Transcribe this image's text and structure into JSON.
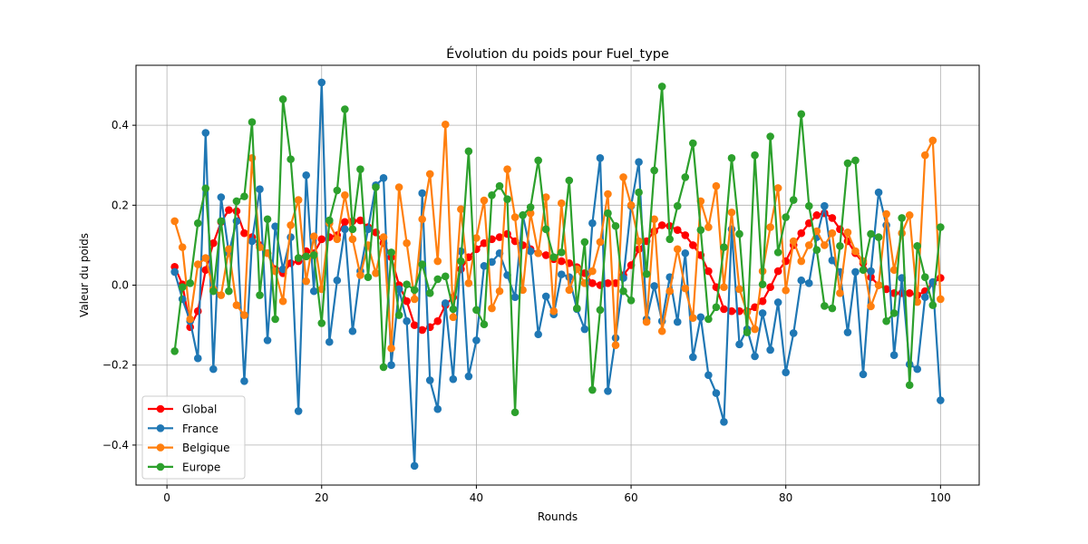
{
  "chart_data": {
    "type": "line",
    "title": "Évolution du poids pour Fuel_type",
    "xlabel": "Rounds",
    "ylabel": "Valeur du poids",
    "xlim": [
      -4,
      105
    ],
    "ylim": [
      -0.5,
      0.55
    ],
    "xticks": [
      0,
      20,
      40,
      60,
      80,
      100
    ],
    "yticks": [
      -0.4,
      -0.2,
      0.0,
      0.2,
      0.4
    ],
    "grid": true,
    "legend_position": "lower-left",
    "x_start": 1,
    "series": [
      {
        "name": "Global",
        "color": "#ff0000",
        "values": [
          0.046,
          0.002,
          -0.105,
          -0.065,
          0.038,
          0.105,
          0.158,
          0.188,
          0.185,
          0.13,
          0.12,
          0.1,
          0.08,
          0.04,
          0.03,
          0.055,
          0.06,
          0.085,
          0.08,
          0.115,
          0.12,
          0.125,
          0.158,
          0.16,
          0.162,
          0.145,
          0.132,
          0.105,
          0.07,
          0.0,
          -0.04,
          -0.1,
          -0.112,
          -0.105,
          -0.09,
          -0.05,
          -0.03,
          0.04,
          0.07,
          0.09,
          0.105,
          0.115,
          0.12,
          0.128,
          0.11,
          0.1,
          0.09,
          0.08,
          0.075,
          0.065,
          0.06,
          0.055,
          0.045,
          0.03,
          0.005,
          0.0,
          0.005,
          0.005,
          0.025,
          0.05,
          0.09,
          0.11,
          0.135,
          0.15,
          0.148,
          0.138,
          0.125,
          0.1,
          0.075,
          0.035,
          -0.005,
          -0.06,
          -0.065,
          -0.065,
          -0.065,
          -0.055,
          -0.04,
          -0.005,
          0.035,
          0.06,
          0.1,
          0.13,
          0.155,
          0.175,
          0.18,
          0.168,
          0.14,
          0.11,
          0.08,
          0.055,
          0.02,
          0.0,
          -0.01,
          -0.02,
          -0.02,
          -0.02,
          -0.025,
          -0.015,
          0.005,
          0.018
        ]
      },
      {
        "name": "France",
        "color": "#1f77b4",
        "values": [
          0.033,
          -0.035,
          -0.09,
          -0.183,
          0.381,
          -0.21,
          0.22,
          0.08,
          0.16,
          -0.24,
          0.11,
          0.24,
          -0.138,
          0.147,
          0.04,
          0.12,
          -0.315,
          0.275,
          -0.015,
          0.507,
          -0.142,
          0.012,
          0.14,
          -0.115,
          0.035,
          0.14,
          0.25,
          0.268,
          -0.2,
          -0.01,
          -0.09,
          -0.452,
          0.23,
          -0.238,
          -0.31,
          -0.045,
          -0.235,
          0.085,
          -0.228,
          -0.138,
          0.048,
          0.058,
          0.08,
          0.025,
          -0.03,
          0.175,
          0.085,
          -0.123,
          -0.028,
          -0.073,
          0.027,
          0.02,
          -0.06,
          -0.11,
          0.155,
          0.318,
          -0.265,
          -0.132,
          0.018,
          0.198,
          0.308,
          -0.085,
          -0.002,
          -0.09,
          0.02,
          -0.092,
          0.08,
          -0.18,
          -0.08,
          -0.225,
          -0.27,
          -0.342,
          0.14,
          -0.148,
          -0.11,
          -0.178,
          -0.07,
          -0.162,
          -0.043,
          -0.218,
          -0.12,
          0.012,
          0.005,
          0.12,
          0.198,
          0.062,
          0.033,
          -0.118,
          0.033,
          -0.223,
          0.035,
          0.232,
          0.15,
          -0.175,
          0.018,
          -0.198,
          -0.21,
          -0.03,
          0.008,
          -0.288
        ]
      },
      {
        "name": "Belgique",
        "color": "#ff7f0e",
        "values": [
          0.16,
          0.095,
          -0.085,
          0.052,
          0.068,
          -0.01,
          -0.025,
          0.09,
          -0.05,
          -0.075,
          0.318,
          0.095,
          0.08,
          0.035,
          -0.04,
          0.15,
          0.213,
          0.01,
          0.122,
          -0.01,
          0.155,
          0.115,
          0.225,
          0.115,
          0.025,
          0.1,
          0.03,
          0.12,
          -0.158,
          0.245,
          0.105,
          -0.035,
          0.165,
          0.278,
          0.06,
          0.402,
          -0.08,
          0.19,
          0.005,
          0.118,
          0.212,
          -0.058,
          -0.015,
          0.29,
          0.17,
          -0.012,
          0.18,
          0.08,
          0.22,
          -0.065,
          0.205,
          -0.012,
          0.04,
          0.005,
          0.035,
          0.108,
          0.228,
          -0.15,
          0.27,
          0.2,
          0.11,
          -0.092,
          0.165,
          -0.115,
          -0.015,
          0.09,
          -0.008,
          -0.082,
          0.21,
          0.145,
          0.248,
          -0.005,
          0.182,
          -0.01,
          -0.068,
          -0.11,
          0.035,
          0.145,
          0.243,
          -0.013,
          0.11,
          0.06,
          0.1,
          0.135,
          0.1,
          0.13,
          -0.02,
          0.132,
          0.085,
          0.06,
          -0.053,
          0.0,
          0.178,
          0.038,
          0.13,
          0.175,
          -0.042,
          0.325,
          0.362,
          -0.035
        ]
      },
      {
        "name": "Europe",
        "color": "#2ca02c",
        "values": [
          -0.165,
          -0.005,
          0.005,
          0.155,
          0.242,
          -0.015,
          0.16,
          -0.015,
          0.21,
          0.222,
          0.408,
          -0.025,
          0.165,
          -0.085,
          0.465,
          0.315,
          0.068,
          0.072,
          0.075,
          -0.095,
          0.162,
          0.237,
          0.44,
          0.14,
          0.29,
          0.02,
          0.245,
          -0.205,
          0.082,
          -0.075,
          0.002,
          -0.012,
          0.052,
          -0.02,
          0.015,
          0.022,
          -0.06,
          0.06,
          0.335,
          -0.062,
          -0.098,
          0.225,
          0.248,
          0.215,
          -0.318,
          0.175,
          0.195,
          0.312,
          0.14,
          0.07,
          0.082,
          0.262,
          -0.058,
          0.108,
          -0.262,
          -0.062,
          0.18,
          0.148,
          -0.015,
          -0.038,
          0.232,
          0.028,
          0.287,
          0.497,
          0.115,
          0.198,
          0.27,
          0.355,
          0.138,
          -0.085,
          -0.055,
          0.095,
          0.318,
          0.128,
          -0.118,
          0.325,
          0.002,
          0.372,
          0.082,
          0.17,
          0.213,
          0.428,
          0.198,
          0.088,
          -0.052,
          -0.058,
          0.098,
          0.305,
          0.312,
          0.038,
          0.128,
          0.12,
          -0.09,
          -0.07,
          0.168,
          -0.25,
          0.098,
          0.02,
          -0.05,
          0.145
        ]
      }
    ]
  }
}
